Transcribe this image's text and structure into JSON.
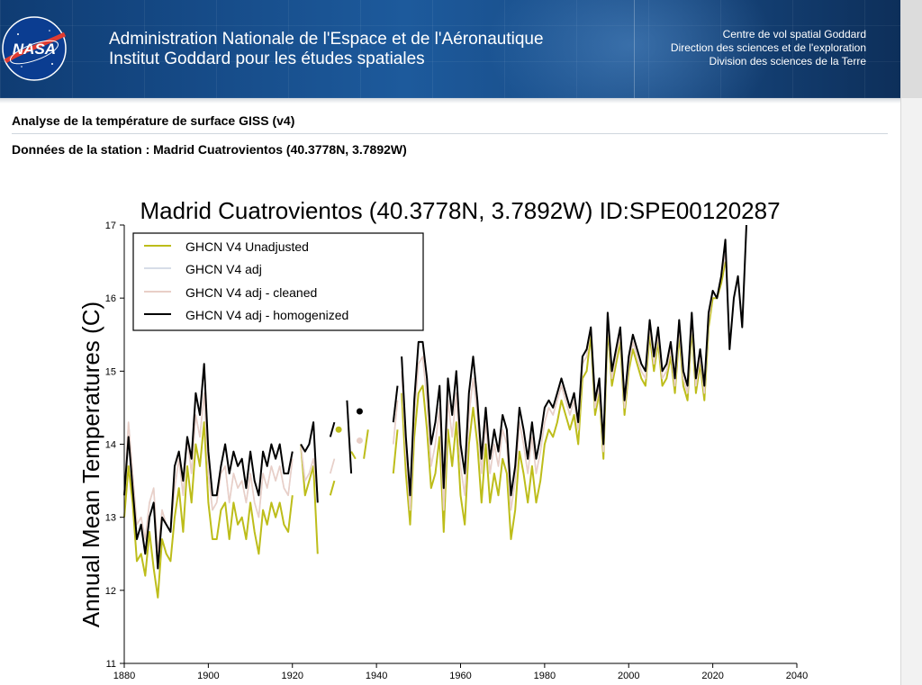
{
  "header": {
    "agency_line1": "Administration Nationale de l'Espace et de l'Aéronautique",
    "agency_line2": "Institut Goddard pour les études spatiales",
    "center_line1": "Centre de vol spatial Goddard",
    "center_line2": "Direction des sciences et de l'exploration",
    "center_line3": "Division des sciences de la Terre",
    "logo_text": "NASA"
  },
  "page": {
    "title": "Analyse de la température de surface GISS (v4)",
    "station_line": "Données de la station : Madrid Cuatrovientos (40.3778N, 3.7892W)"
  },
  "colors": {
    "unadjusted": "#bdbd1a",
    "adj": "#d7dde8",
    "cleaned": "#e9cfc7",
    "homogenized": "#000000"
  },
  "chart_data": {
    "type": "line",
    "title": "Madrid Cuatrovientos (40.3778N, 3.7892W) ID:SPE00120287",
    "xlabel": "",
    "ylabel": "Annual Mean Temperatures (C)",
    "xlim": [
      1880,
      2040
    ],
    "ylim": [
      11,
      17
    ],
    "xticks": [
      1880,
      1900,
      1920,
      1940,
      1960,
      1980,
      2000,
      2020,
      2040
    ],
    "yticks": [
      11,
      12,
      13,
      14,
      15,
      16,
      17
    ],
    "legend_position": "top-left",
    "series": [
      {
        "name": "GHCN V4 Unadjusted",
        "color_key": "unadjusted",
        "segments": [
          {
            "start": 1880,
            "values": [
              13.0,
              13.7,
              13.2,
              12.4,
              12.5,
              12.2,
              12.8,
              12.3,
              11.9,
              12.7,
              12.5,
              12.4,
              13.0,
              13.4,
              12.8,
              13.7,
              13.2,
              14.0,
              13.7,
              14.3,
              13.2,
              12.7,
              12.7,
              13.1,
              13.2,
              12.7,
              13.2,
              12.9,
              13.0,
              12.7,
              13.2,
              12.8,
              12.5,
              13.1,
              12.9,
              13.2,
              13.0,
              13.2,
              12.9,
              12.8,
              13.3
            ]
          },
          {
            "start": 1922,
            "values": [
              14.0,
              13.3,
              13.5,
              13.7,
              12.5
            ]
          },
          {
            "start": 1929,
            "values": [
              13.3,
              13.5
            ]
          },
          {
            "start": 1934,
            "values": [
              13.9,
              13.8
            ]
          },
          {
            "start": 1937,
            "values": [
              13.8,
              14.2
            ]
          },
          {
            "start": 1944,
            "values": [
              13.6,
              14.2
            ]
          },
          {
            "start": 1946,
            "values": [
              14.7,
              13.6,
              12.9,
              14.1,
              14.7,
              14.8,
              14.2,
              13.4,
              13.6,
              14.1,
              12.8,
              14.2,
              13.7,
              14.3,
              13.3,
              12.9,
              14.0,
              14.5,
              14.0,
              13.2,
              14.0,
              13.2,
              13.6,
              13.3,
              13.8,
              13.6,
              12.7,
              13.1,
              13.9,
              13.6,
              13.2,
              13.7,
              13.2,
              13.5,
              14.0,
              14.2,
              14.1,
              14.3,
              14.6,
              14.4,
              14.2,
              14.4,
              14.0,
              14.9,
              15.0,
              15.5,
              14.4,
              14.7,
              13.8,
              15.6,
              14.8,
              15.1,
              15.4,
              14.4,
              15.0,
              15.3,
              15.1,
              14.9,
              14.8,
              15.5,
              15.0,
              15.4,
              14.8,
              14.9,
              15.2,
              14.7,
              15.5,
              14.8,
              14.6,
              15.6,
              14.7,
              15.1,
              14.6,
              15.6,
              16.0,
              16.0,
              16.2,
              16.5
            ]
          }
        ]
      },
      {
        "name": "GHCN V4 adj",
        "color_key": "adj",
        "segments": [
          {
            "start": 1880,
            "values": [
              13.3,
              14.3,
              13.6,
              12.9,
              13.0,
              12.7,
              13.2,
              13.4,
              12.5,
              13.1,
              12.9,
              12.8,
              13.4,
              13.8,
              13.3,
              14.1,
              13.6,
              14.4,
              14.1,
              14.7,
              13.6,
              13.1,
              13.2,
              13.6,
              13.7,
              13.2,
              13.6,
              13.4,
              13.5,
              13.2,
              13.6,
              13.2,
              13.0,
              13.6,
              13.4,
              13.7,
              13.5,
              13.7,
              13.4,
              13.3,
              13.8
            ]
          },
          {
            "start": 1922,
            "values": [
              14.0,
              13.5,
              13.6,
              13.8,
              13.3
            ]
          },
          {
            "start": 1929,
            "values": [
              13.6,
              13.8
            ]
          },
          {
            "start": 1934,
            "values": [
              13.2
            ]
          },
          {
            "start": 1944,
            "values": [
              14.0,
              14.6
            ]
          },
          {
            "start": 1946,
            "values": [
              15.0,
              13.9,
              13.1,
              14.4,
              15.1,
              15.2,
              14.6,
              13.7,
              14.0,
              14.5,
              13.1,
              14.6,
              14.1,
              14.7,
              13.7,
              13.3,
              14.4,
              14.9,
              14.4,
              13.6,
              14.3,
              13.6,
              14.0,
              13.7,
              14.2,
              14.0,
              13.1,
              13.5,
              14.3,
              14.0,
              13.6,
              14.1,
              13.6,
              13.9,
              14.3,
              14.5,
              14.4,
              14.6,
              14.8,
              14.6,
              14.4,
              14.6,
              14.2,
              15.1,
              15.2,
              15.6,
              14.5,
              14.8,
              13.9,
              15.7,
              14.9,
              15.2,
              15.5,
              14.5,
              15.1,
              15.4,
              15.2,
              15.0,
              14.9,
              15.6,
              15.1,
              15.5,
              14.9,
              15.0,
              15.3,
              14.8,
              15.6,
              14.9,
              14.7,
              15.7,
              14.8,
              15.2,
              14.7,
              15.7,
              16.1,
              16.0,
              16.3,
              16.6
            ]
          }
        ]
      },
      {
        "name": "GHCN V4 adj - cleaned",
        "color_key": "cleaned",
        "segments": [
          {
            "start": 1880,
            "values": [
              13.3,
              14.3,
              13.6,
              12.9,
              13.0,
              12.7,
              13.2,
              13.4,
              12.5,
              13.1,
              12.9,
              12.8,
              13.4,
              13.8,
              13.3,
              14.1,
              13.6,
              14.4,
              14.1,
              14.7,
              13.6,
              13.1,
              13.2,
              13.6,
              13.7,
              13.2,
              13.6,
              13.4,
              13.5,
              13.2,
              13.6,
              13.2,
              13.0,
              13.6,
              13.4,
              13.7,
              13.5,
              13.7,
              13.4,
              13.3,
              13.8
            ]
          },
          {
            "start": 1922,
            "values": [
              14.0,
              13.5,
              13.6,
              13.8,
              13.3
            ]
          },
          {
            "start": 1929,
            "values": [
              13.6,
              13.8
            ]
          },
          {
            "start": 1934,
            "values": [
              13.2
            ]
          },
          {
            "start": 1944,
            "values": [
              14.0,
              14.6
            ]
          },
          {
            "start": 1946,
            "values": [
              15.0,
              13.9,
              13.1,
              14.4,
              15.1,
              15.2,
              14.6,
              13.7,
              14.0,
              14.5,
              13.1,
              14.6,
              14.1,
              14.7,
              13.7,
              13.3,
              14.4,
              14.9,
              14.4,
              13.6,
              14.3,
              13.6,
              14.0,
              13.7,
              14.2,
              14.0,
              13.1,
              13.5,
              14.3,
              14.0,
              13.6,
              14.1,
              13.6,
              13.9,
              14.3,
              14.5,
              14.4,
              14.6,
              14.8,
              14.6,
              14.4,
              14.6,
              14.2,
              15.1,
              15.2,
              15.6,
              14.5,
              14.8,
              13.9,
              15.7,
              14.9,
              15.2,
              15.5,
              14.5,
              15.1,
              15.4,
              15.2,
              15.0,
              14.9,
              15.6,
              15.1,
              15.5,
              14.9,
              15.0,
              15.3,
              14.8,
              15.6,
              14.9,
              14.7,
              15.7,
              14.8,
              15.2,
              14.7,
              15.7,
              16.1,
              16.0,
              16.3,
              16.6
            ]
          }
        ]
      },
      {
        "name": "GHCN V4 adj - homogenized",
        "color_key": "homogenized",
        "segments": [
          {
            "start": 1880,
            "values": [
              13.3,
              14.1,
              13.4,
              12.7,
              12.9,
              12.5,
              13.0,
              13.2,
              12.3,
              13.0,
              12.9,
              12.8,
              13.7,
              13.9,
              13.5,
              14.1,
              13.8,
              14.7,
              14.4,
              15.1,
              13.9,
              13.3,
              13.3,
              13.7,
              14.0,
              13.6,
              13.9,
              13.7,
              13.8,
              13.4,
              13.9,
              13.5,
              13.3,
              13.9,
              13.7,
              14.0,
              13.8,
              14.0,
              13.6,
              13.6,
              13.9
            ]
          },
          {
            "start": 1922,
            "values": [
              14.0,
              13.9,
              14.0,
              14.3,
              13.2
            ]
          },
          {
            "start": 1929,
            "values": [
              14.1,
              14.3
            ]
          },
          {
            "start": 1933,
            "values": [
              14.6,
              13.6
            ]
          },
          {
            "start": 1944,
            "values": [
              14.3,
              14.8
            ]
          },
          {
            "start": 1946,
            "values": [
              15.2,
              14.1,
              13.3,
              14.6,
              15.4,
              15.4,
              14.9,
              14.0,
              14.3,
              14.8,
              13.4,
              14.9,
              14.4,
              15.0,
              14.0,
              13.6,
              14.7,
              15.2,
              14.6,
              13.8,
              14.5,
              13.8,
              14.2,
              13.9,
              14.4,
              14.2,
              13.3,
              13.7,
              14.5,
              14.2,
              13.8,
              14.3,
              13.8,
              14.1,
              14.5,
              14.6,
              14.5,
              14.7,
              14.9,
              14.7,
              14.5,
              14.7,
              14.3,
              15.2,
              15.3,
              15.6,
              14.6,
              14.9,
              14.0,
              15.8,
              15.0,
              15.3,
              15.6,
              14.6,
              15.2,
              15.5,
              15.3,
              15.1,
              15.0,
              15.7,
              15.2,
              15.6,
              15.0,
              15.1,
              15.4,
              14.9,
              15.7,
              15.0,
              14.8,
              15.8,
              14.9,
              15.3,
              14.8,
              15.8,
              16.1,
              16.0,
              16.3,
              16.8,
              15.3,
              16.0,
              16.3,
              15.6,
              17.0
            ]
          }
        ]
      }
    ],
    "points": [
      {
        "series": "GHCN V4 Unadjusted",
        "x": 1931,
        "y": 14.2
      },
      {
        "series": "GHCN V4 adj - cleaned",
        "x": 1936,
        "y": 14.05
      },
      {
        "series": "GHCN V4 adj - homogenized",
        "x": 1936,
        "y": 14.45
      }
    ]
  }
}
